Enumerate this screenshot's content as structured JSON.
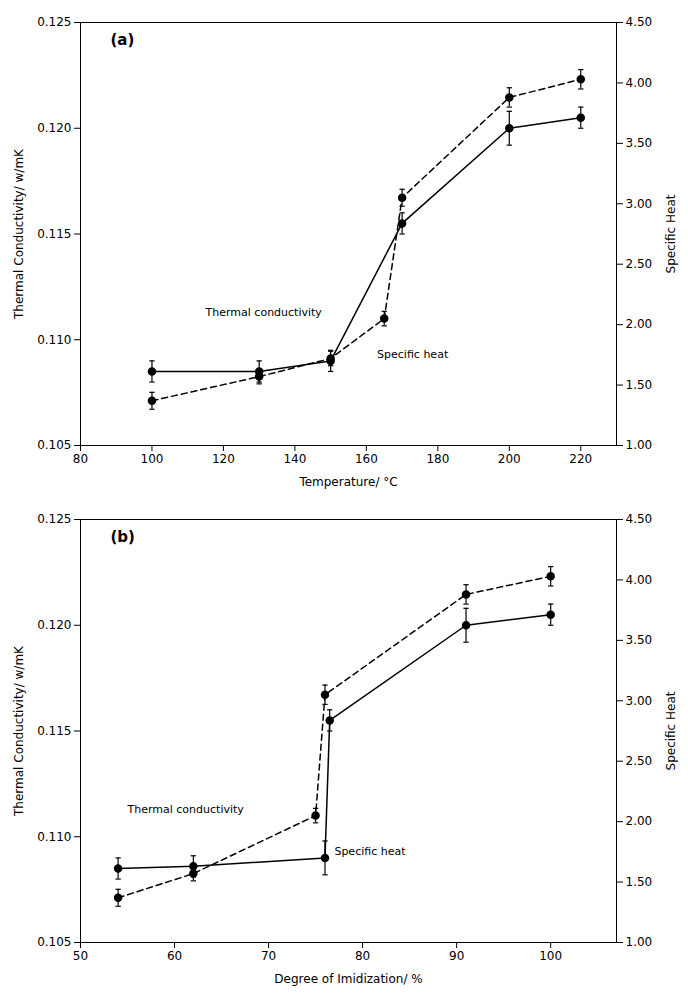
{
  "chart_data": [
    {
      "type": "line",
      "title": "(a)",
      "xlabel": "Temperature/ °C",
      "ylabel": "Thermal Conductivity/ w/mK",
      "y2label": "Specific Heat",
      "xlim": [
        80,
        230
      ],
      "xticks": [
        80,
        100,
        120,
        140,
        160,
        180,
        200,
        220
      ],
      "ylim": [
        0.105,
        0.125
      ],
      "yticks": [
        0.105,
        {
          "value": 0.11,
          "label": "0.110"
        },
        0.115,
        {
          "value": 0.12,
          "label": "0.120"
        },
        0.125
      ],
      "y2lim": [
        1.0,
        4.5
      ],
      "y2ticks": [
        {
          "value": 1,
          "label": "1.00"
        },
        {
          "value": 1.5,
          "label": "1.50"
        },
        {
          "value": 2,
          "label": "2.00"
        },
        {
          "value": 2.5,
          "label": "2.50"
        },
        {
          "value": 3,
          "label": "3.00"
        },
        {
          "value": 3.5,
          "label": "3.50"
        },
        {
          "value": 4,
          "label": "4.00"
        },
        {
          "value": 4.5,
          "label": "4.50"
        }
      ],
      "series": [
        {
          "axis": "y",
          "color": "#000000",
          "marker": "circle",
          "line_style": "solid",
          "x": [
            100,
            130,
            150,
            170,
            200,
            220
          ],
          "values": [
            0.1085,
            0.1085,
            0.109,
            0.1155,
            0.12,
            0.1205
          ],
          "errors": [
            0.0005,
            0.0005,
            0.0005,
            0.0005,
            0.0008,
            0.0005
          ]
        },
        {
          "axis": "y2",
          "color": "#000000",
          "marker": "circle",
          "line_style": "dashed",
          "x": [
            100,
            130,
            150,
            165,
            170,
            200,
            220
          ],
          "values": [
            1.37,
            1.57,
            1.72,
            2.05,
            3.05,
            3.88,
            4.03
          ],
          "errors": [
            0.07,
            0.06,
            0.06,
            0.06,
            0.07,
            0.08,
            0.08
          ]
        }
      ],
      "annotations": [
        {
          "text": "Thermal conductivity",
          "x": 115,
          "y": 0.1113,
          "color": "#000000"
        },
        {
          "text": "Specific heat",
          "x": 163,
          "y": 0.1093,
          "color": "#000000"
        }
      ]
    },
    {
      "type": "line",
      "title": "(b)",
      "xlabel": "Degree of Imidization/ %",
      "ylabel": "Thermal Conductivity/ w/mK",
      "y2label": "Specific Heat",
      "xlim": [
        50,
        107
      ],
      "xticks": [
        50,
        60,
        70,
        80,
        90,
        100
      ],
      "ylim": [
        0.105,
        0.125
      ],
      "yticks": [
        0.105,
        {
          "value": 0.11,
          "label": "0.110"
        },
        0.115,
        {
          "value": 0.12,
          "label": "0.120"
        },
        0.125
      ],
      "y2lim": [
        1.0,
        4.5
      ],
      "y2ticks": [
        {
          "value": 1,
          "label": "1.00"
        },
        {
          "value": 1.5,
          "label": "1.50"
        },
        {
          "value": 2,
          "label": "2.00"
        },
        {
          "value": 2.5,
          "label": "2.50"
        },
        {
          "value": 3,
          "label": "3.00"
        },
        {
          "value": 3.5,
          "label": "3.50"
        },
        {
          "value": 4,
          "label": "4.00"
        },
        {
          "value": 4.5,
          "label": "4.50"
        }
      ],
      "series": [
        {
          "axis": "y",
          "color": "#000000",
          "marker": "circle",
          "line_style": "solid",
          "x": [
            54,
            62,
            76,
            76.5,
            91,
            100
          ],
          "values": [
            0.1085,
            0.1086,
            0.109,
            0.1155,
            0.12,
            0.1205
          ],
          "errors": [
            0.0005,
            0.0005,
            0.0008,
            0.0005,
            0.0008,
            0.0005
          ]
        },
        {
          "axis": "y2",
          "color": "#000000",
          "marker": "circle",
          "line_style": "dashed",
          "x": [
            54,
            62,
            75,
            76,
            91,
            100
          ],
          "values": [
            1.37,
            1.57,
            2.05,
            3.05,
            3.88,
            4.03
          ],
          "errors": [
            0.07,
            0.06,
            0.06,
            0.08,
            0.08,
            0.08
          ]
        }
      ],
      "annotations": [
        {
          "text": "Thermal conductivity",
          "x": 55,
          "y": 0.1113,
          "color": "#000000"
        },
        {
          "text": "Specific heat",
          "x": 77,
          "y": 0.1093,
          "color": "#000000"
        }
      ]
    }
  ]
}
